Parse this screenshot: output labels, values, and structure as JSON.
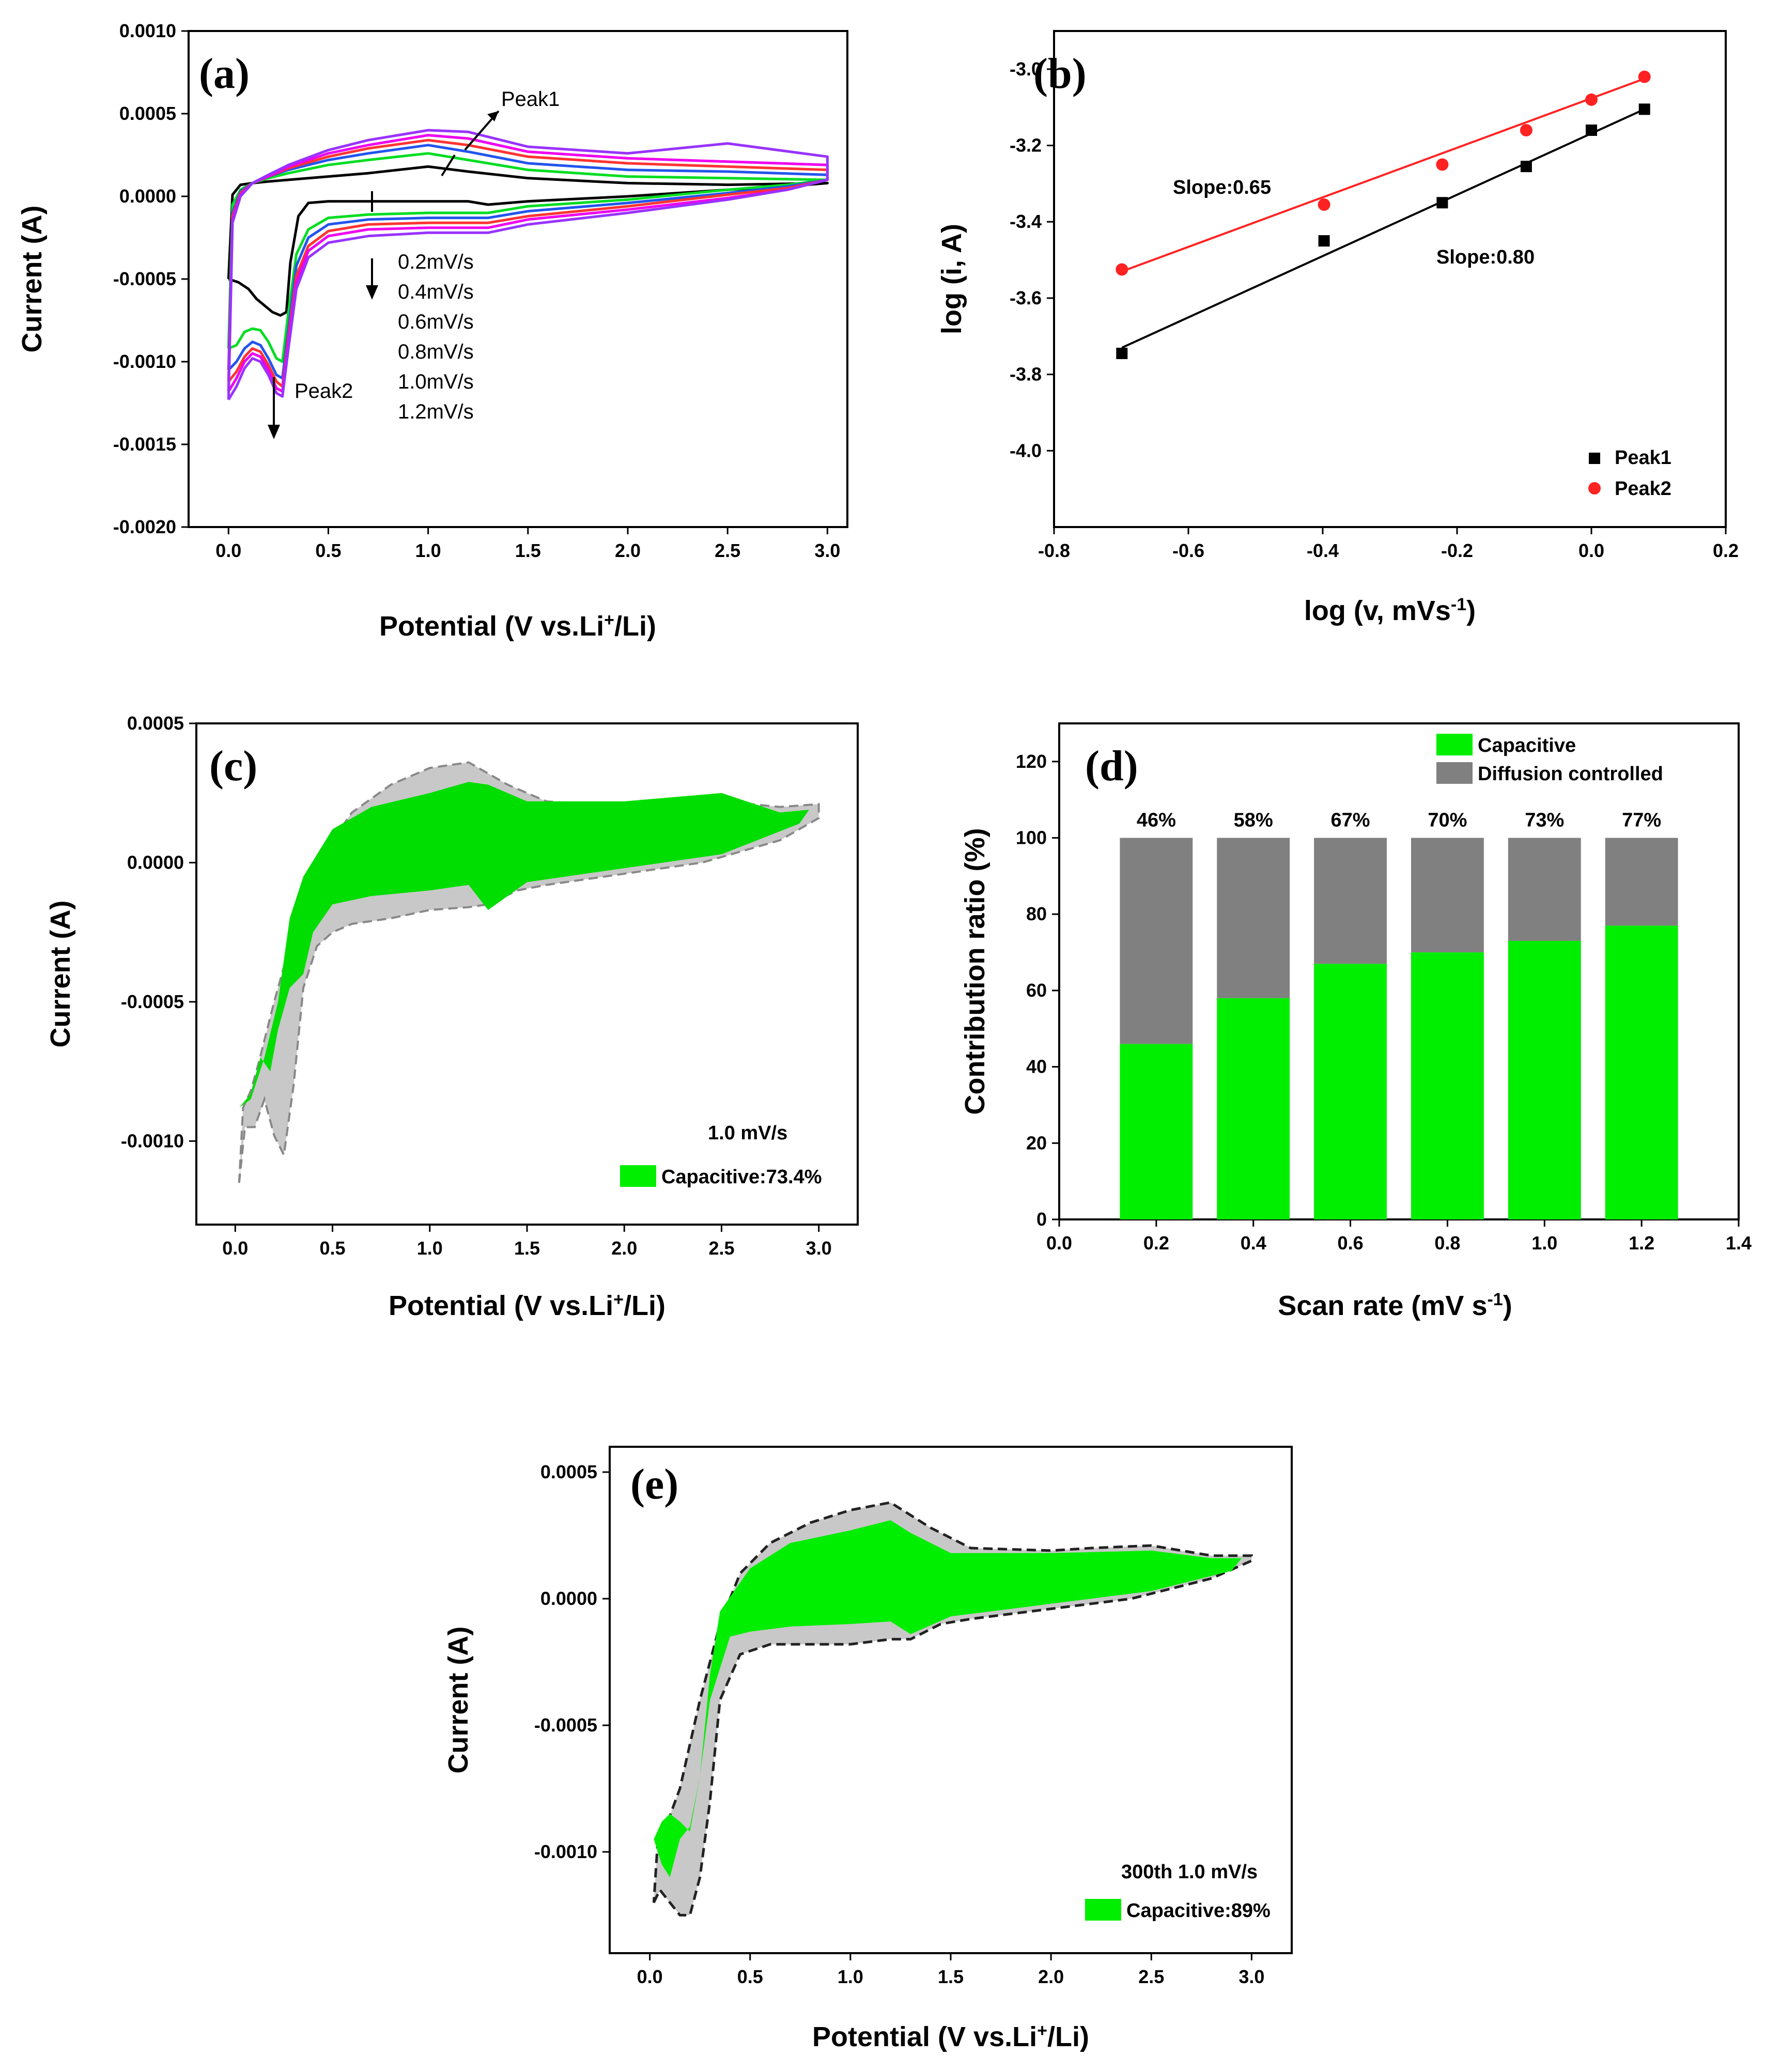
{
  "chart_data": [
    {
      "panel": "(a)",
      "type": "line",
      "xlabel": "Potential (V vs.Li+/Li)",
      "xlabel_parts": [
        "Potential (V vs.Li",
        "+",
        "/Li)"
      ],
      "ylabel": "Current (A)",
      "xlim": [
        -0.2,
        3.1
      ],
      "ylim": [
        -0.002,
        0.001
      ],
      "xticks": [
        "0.0",
        "0.5",
        "1.0",
        "1.5",
        "2.0",
        "2.5",
        "3.0"
      ],
      "yticks": [
        "-0.0020",
        "-0.0015",
        "-0.0010",
        "-0.0005",
        "0.0000",
        "0.0005",
        "0.0010"
      ],
      "grid": false,
      "annotations": [
        "Peak1",
        "Peak2"
      ],
      "legend_text": [
        "0.2mV/s",
        "0.4mV/s",
        "0.6mV/s",
        "0.8mV/s",
        "1.0mV/s",
        "1.2mV/s"
      ],
      "series": [
        {
          "scan_rate": "0.2mV/s",
          "color": "#000000",
          "x": [
            0.0,
            0.05,
            0.1,
            0.14,
            0.18,
            0.22,
            0.26,
            0.29,
            0.31,
            0.35,
            0.4,
            0.5,
            0.7,
            1.0,
            1.2,
            1.3,
            1.5,
            2.0,
            2.5,
            2.8,
            3.0,
            3.0,
            2.5,
            2.0,
            1.5,
            1.2,
            1.0,
            0.7,
            0.5,
            0.3,
            0.2,
            0.12,
            0.06,
            0.02,
            0.0
          ],
          "y": [
            -0.0005,
            -0.00052,
            -0.00056,
            -0.00062,
            -0.00066,
            -0.0007,
            -0.00072,
            -0.0007,
            -0.0004,
            -0.00012,
            -4e-05,
            -3e-05,
            -3e-05,
            -3e-05,
            -3e-05,
            -5e-05,
            -3e-05,
            0.0,
            4e-05,
            6e-05,
            8e-05,
            8e-05,
            7e-05,
            8e-05,
            0.00011,
            0.00015,
            0.00018,
            0.00014,
            0.00012,
            0.0001,
            9e-05,
            8e-05,
            7e-05,
            1e-05,
            -0.0005
          ]
        },
        {
          "scan_rate": "0.4mV/s",
          "color": "#00dd22",
          "x": [
            0.0,
            0.04,
            0.08,
            0.12,
            0.16,
            0.2,
            0.24,
            0.27,
            0.3,
            0.34,
            0.4,
            0.5,
            0.7,
            1.0,
            1.3,
            1.5,
            2.0,
            2.5,
            2.8,
            3.0,
            3.0,
            2.5,
            2.0,
            1.5,
            1.2,
            1.0,
            0.7,
            0.5,
            0.3,
            0.2,
            0.12,
            0.06,
            0.02,
            0.0
          ],
          "y": [
            -0.00092,
            -0.0009,
            -0.00082,
            -0.0008,
            -0.00081,
            -0.00088,
            -0.00098,
            -0.001,
            -0.0007,
            -0.00035,
            -0.0002,
            -0.00013,
            -0.00011,
            -0.0001,
            -0.0001,
            -6e-05,
            -2e-05,
            4e-05,
            7e-05,
            0.0001,
            0.0001,
            0.00011,
            0.00012,
            0.00016,
            0.00022,
            0.00026,
            0.00022,
            0.00019,
            0.00014,
            0.00011,
            8e-05,
            4e-05,
            -5e-05,
            -0.00092
          ]
        },
        {
          "scan_rate": "0.6mV/s",
          "color": "#2255ee",
          "x": [
            0.0,
            0.04,
            0.08,
            0.12,
            0.16,
            0.2,
            0.24,
            0.27,
            0.3,
            0.34,
            0.4,
            0.5,
            0.7,
            1.0,
            1.3,
            1.5,
            2.0,
            2.5,
            2.8,
            3.0,
            3.0,
            2.5,
            2.0,
            1.5,
            1.2,
            1.0,
            0.7,
            0.5,
            0.3,
            0.2,
            0.12,
            0.06,
            0.02,
            0.0
          ],
          "y": [
            -0.00105,
            -0.001,
            -0.00092,
            -0.00088,
            -0.0009,
            -0.00098,
            -0.00108,
            -0.0011,
            -0.0008,
            -0.00042,
            -0.00025,
            -0.00017,
            -0.00014,
            -0.00013,
            -0.00013,
            -9e-05,
            -4e-05,
            2e-05,
            6e-05,
            0.0001,
            0.00013,
            0.00015,
            0.00016,
            0.0002,
            0.00027,
            0.00031,
            0.00026,
            0.00022,
            0.00016,
            0.00012,
            8e-05,
            3e-05,
            -0.0001,
            -0.00105
          ]
        },
        {
          "scan_rate": "0.8mV/s",
          "color": "#ff3333",
          "x": [
            0.0,
            0.04,
            0.08,
            0.12,
            0.16,
            0.2,
            0.24,
            0.27,
            0.3,
            0.34,
            0.4,
            0.5,
            0.7,
            1.0,
            1.3,
            1.5,
            2.0,
            2.5,
            2.8,
            3.0,
            3.0,
            2.5,
            2.0,
            1.5,
            1.2,
            1.0,
            0.7,
            0.5,
            0.3,
            0.2,
            0.12,
            0.06,
            0.02,
            0.0
          ],
          "y": [
            -0.00112,
            -0.00106,
            -0.00097,
            -0.00092,
            -0.00094,
            -0.00102,
            -0.00112,
            -0.00115,
            -0.00085,
            -0.00048,
            -0.0003,
            -0.00021,
            -0.00017,
            -0.00016,
            -0.00016,
            -0.00012,
            -6e-05,
            1e-05,
            5e-05,
            0.0001,
            0.00016,
            0.00018,
            0.0002,
            0.00024,
            0.00031,
            0.00034,
            0.00029,
            0.00024,
            0.00017,
            0.00012,
            8e-05,
            2e-05,
            -0.00012,
            -0.00112
          ]
        },
        {
          "scan_rate": "1.0mV/s",
          "color": "#ee00ee",
          "x": [
            0.0,
            0.04,
            0.08,
            0.12,
            0.16,
            0.2,
            0.24,
            0.27,
            0.3,
            0.34,
            0.4,
            0.5,
            0.7,
            1.0,
            1.3,
            1.5,
            2.0,
            2.5,
            2.8,
            3.0,
            3.0,
            2.5,
            2.0,
            1.5,
            1.2,
            1.0,
            0.7,
            0.5,
            0.3,
            0.2,
            0.12,
            0.06,
            0.02,
            0.0
          ],
          "y": [
            -0.00118,
            -0.0011,
            -0.001,
            -0.00095,
            -0.00097,
            -0.00105,
            -0.00116,
            -0.00118,
            -0.00088,
            -0.00052,
            -0.00033,
            -0.00024,
            -0.0002,
            -0.00019,
            -0.00019,
            -0.00014,
            -8e-05,
            -1e-05,
            4e-05,
            0.0001,
            0.00019,
            0.00021,
            0.00023,
            0.00027,
            0.00035,
            0.00037,
            0.00031,
            0.00026,
            0.00018,
            0.00012,
            8e-05,
            1e-05,
            -0.00014,
            -0.00118
          ]
        },
        {
          "scan_rate": "1.2mV/s",
          "color": "#9933ff",
          "x": [
            0.0,
            0.04,
            0.08,
            0.12,
            0.16,
            0.2,
            0.24,
            0.27,
            0.3,
            0.34,
            0.4,
            0.5,
            0.7,
            1.0,
            1.3,
            1.5,
            2.0,
            2.5,
            2.8,
            3.0,
            3.0,
            2.5,
            2.0,
            1.5,
            1.2,
            1.0,
            0.7,
            0.5,
            0.3,
            0.2,
            0.12,
            0.06,
            0.02,
            0.0
          ],
          "y": [
            -0.00123,
            -0.00115,
            -0.00104,
            -0.00098,
            -0.001,
            -0.00108,
            -0.00119,
            -0.00121,
            -0.00092,
            -0.00056,
            -0.00037,
            -0.00028,
            -0.00024,
            -0.00022,
            -0.00022,
            -0.00017,
            -0.0001,
            -2e-05,
            4e-05,
            0.0001,
            0.00024,
            0.00032,
            0.00026,
            0.0003,
            0.00039,
            0.0004,
            0.00034,
            0.00028,
            0.00019,
            0.00013,
            8e-05,
            0.0,
            -0.00016,
            -0.00123
          ]
        }
      ]
    },
    {
      "panel": "(b)",
      "type": "scatter",
      "xlabel": "log (v, mVs-1)",
      "xlabel_parts": [
        "log (v, mVs",
        "-1",
        ")"
      ],
      "ylabel": "log (i, A)",
      "xlim": [
        -0.8,
        0.2
      ],
      "ylim": [
        -4.2,
        -2.9
      ],
      "xticks": [
        "-0.8",
        "-0.6",
        "-0.4",
        "-0.2",
        "0.0",
        "0.2"
      ],
      "yticks": [
        "-4.0",
        "-3.8",
        "-3.6",
        "-3.4",
        "-3.2",
        "-3.0"
      ],
      "grid": false,
      "legend": "bottom-right",
      "annotations": [
        "Slope:0.65",
        "Slope:0.80"
      ],
      "series": [
        {
          "name": "Peak1",
          "color": "#000000",
          "marker": "square",
          "x": [
            -0.699,
            -0.398,
            -0.222,
            -0.097,
            0.0,
            0.079
          ],
          "y": [
            -3.745,
            -3.45,
            -3.35,
            -3.255,
            -3.16,
            -3.105
          ],
          "fit": [
            [
              -0.699,
              -3.73
            ],
            [
              0.079,
              -3.105
            ]
          ]
        },
        {
          "name": "Peak2",
          "color": "#ff2222",
          "marker": "circle",
          "x": [
            -0.699,
            -0.398,
            -0.222,
            -0.097,
            0.0,
            0.079
          ],
          "y": [
            -3.525,
            -3.355,
            -3.25,
            -3.16,
            -3.08,
            -3.02
          ],
          "fit": [
            [
              -0.699,
              -3.53
            ],
            [
              0.079,
              -3.025
            ]
          ]
        }
      ]
    },
    {
      "panel": "(c)",
      "type": "area",
      "xlabel": "Potential (V vs.Li+/Li)",
      "xlabel_parts": [
        "Potential (V vs.Li",
        "+",
        "/Li)"
      ],
      "ylabel": "Current (A)",
      "xlim": [
        -0.2,
        3.2
      ],
      "ylim": [
        -0.0013,
        0.0005
      ],
      "xticks": [
        "0.0",
        "0.5",
        "1.0",
        "1.5",
        "2.0",
        "2.5",
        "3.0"
      ],
      "yticks": [
        "-0.0010",
        "-0.0005",
        "0.0000",
        "0.0005"
      ],
      "grid": false,
      "annotations": [
        "1.0 mV/s"
      ],
      "legend": {
        "label": "Capacitive:73.4%",
        "color": "#00ee00",
        "position": "bottom-right"
      },
      "total_curve": {
        "color": "#c8c8c8",
        "x": [
          0.02,
          0.05,
          0.1,
          0.15,
          0.2,
          0.25,
          0.3,
          0.35,
          0.42,
          0.5,
          0.6,
          0.8,
          1.0,
          1.2,
          1.3,
          1.45,
          1.6,
          2.0,
          2.4,
          2.8,
          3.0,
          3.0,
          2.8,
          2.5,
          2.3,
          2.0,
          1.6,
          1.4,
          1.2,
          1.0,
          0.8,
          0.6,
          0.45,
          0.35,
          0.3,
          0.2,
          0.12,
          0.08,
          0.04,
          0.02
        ],
        "y": [
          -0.00115,
          -0.00095,
          -0.00095,
          -0.00085,
          -0.00098,
          -0.00105,
          -0.0008,
          -0.00045,
          -0.0003,
          -0.00025,
          -0.00022,
          -0.0002,
          -0.00017,
          -0.00016,
          -0.00015,
          -0.0001,
          -8e-05,
          -4e-05,
          0.0,
          8e-05,
          0.00016,
          0.00021,
          0.0002,
          0.00022,
          0.0002,
          0.0002,
          0.00022,
          0.00028,
          0.00036,
          0.00034,
          0.00028,
          0.00018,
          3e-05,
          -0.0001,
          -0.00025,
          -0.0005,
          -0.00072,
          -0.00082,
          -0.00088,
          -0.00115
        ]
      },
      "capacitive_curve": {
        "color": "#00dd00",
        "x": [
          0.02,
          0.08,
          0.13,
          0.18,
          0.22,
          0.28,
          0.35,
          0.4,
          0.5,
          0.7,
          1.0,
          1.2,
          1.3,
          1.5,
          2.0,
          2.5,
          2.9,
          2.95,
          2.8,
          2.5,
          2.0,
          1.5,
          1.3,
          1.2,
          1.0,
          0.7,
          0.5,
          0.35,
          0.28,
          0.22,
          0.15,
          0.08,
          0.02
        ],
        "y": [
          -0.00088,
          -0.00083,
          -0.0007,
          -0.00075,
          -0.0006,
          -0.00045,
          -0.0004,
          -0.00025,
          -0.00015,
          -0.00012,
          -0.0001,
          -8e-05,
          -0.00017,
          -7e-05,
          -2e-05,
          3e-05,
          0.00014,
          0.00019,
          0.00018,
          0.00025,
          0.00022,
          0.00022,
          0.00028,
          0.00029,
          0.00025,
          0.0002,
          0.00012,
          -5e-05,
          -0.0002,
          -0.0005,
          -0.0007,
          -0.00085,
          -0.00088
        ]
      }
    },
    {
      "panel": "(d)",
      "type": "bar",
      "stacked": true,
      "xlabel": "Scan rate (mV s-1)",
      "xlabel_parts": [
        "Scan rate (mV s",
        "-1",
        ")"
      ],
      "ylabel": "Contribution ratio (%)",
      "xlim": [
        0.0,
        1.4
      ],
      "ylim": [
        0,
        130
      ],
      "xticks": [
        "0.0",
        "0.2",
        "0.4",
        "0.6",
        "0.8",
        "1.0",
        "1.2",
        "1.4"
      ],
      "yticks": [
        "0",
        "20",
        "40",
        "60",
        "80",
        "100",
        "120"
      ],
      "grid": false,
      "legend": "top-right",
      "x": [
        0.2,
        0.4,
        0.6,
        0.8,
        1.0,
        1.2
      ],
      "bar_labels": [
        "46%",
        "58%",
        "67%",
        "70%",
        "73%",
        "77%"
      ],
      "series": [
        {
          "name": "Capacitive",
          "color": "#00ee00",
          "values": [
            46,
            58,
            67,
            70,
            73,
            77
          ]
        },
        {
          "name": "Diffusion controlled",
          "color": "#808080",
          "values": [
            54,
            42,
            33,
            30,
            27,
            23
          ]
        }
      ]
    },
    {
      "panel": "(e)",
      "type": "area",
      "xlabel": "Potential (V vs.Li+/Li)",
      "xlabel_parts": [
        "Potential (V vs.Li",
        "+",
        "/Li)"
      ],
      "ylabel": "Current (A)",
      "xlim": [
        -0.2,
        3.2
      ],
      "ylim": [
        -0.0014,
        0.0006
      ],
      "xticks": [
        "0.0",
        "0.5",
        "1.0",
        "1.5",
        "2.0",
        "2.5",
        "3.0"
      ],
      "yticks": [
        "-0.0010",
        "-0.0005",
        "0.0000",
        "0.0005"
      ],
      "grid": false,
      "annotations": [
        "300th  1.0 mV/s"
      ],
      "legend": {
        "label": "Capacitive:89%",
        "color": "#00ee00",
        "position": "bottom-right"
      },
      "total_curve": {
        "color": "#c8c8c8",
        "x": [
          0.02,
          0.05,
          0.1,
          0.15,
          0.2,
          0.25,
          0.3,
          0.35,
          0.45,
          0.6,
          0.8,
          1.0,
          1.2,
          1.3,
          1.45,
          1.6,
          2.0,
          2.4,
          2.8,
          3.0,
          3.0,
          2.8,
          2.5,
          2.2,
          2.0,
          1.6,
          1.4,
          1.2,
          1.0,
          0.8,
          0.6,
          0.45,
          0.35,
          0.25,
          0.15,
          0.08,
          0.04,
          0.02
        ],
        "y": [
          -0.0012,
          -0.00115,
          -0.0012,
          -0.00125,
          -0.00125,
          -0.0011,
          -0.0008,
          -0.0004,
          -0.00022,
          -0.00018,
          -0.00018,
          -0.00018,
          -0.00016,
          -0.00016,
          -0.0001,
          -8e-05,
          -4e-05,
          0.0,
          8e-05,
          0.00015,
          0.00017,
          0.00017,
          0.00021,
          0.0002,
          0.00019,
          0.0002,
          0.00028,
          0.00038,
          0.00035,
          0.0003,
          0.00022,
          0.0001,
          -0.0001,
          -0.0004,
          -0.00075,
          -0.0009,
          -0.00095,
          -0.0012
        ]
      },
      "capacitive_curve": {
        "color": "#00ee00",
        "x": [
          0.02,
          0.06,
          0.1,
          0.15,
          0.2,
          0.25,
          0.3,
          0.4,
          0.5,
          0.7,
          1.0,
          1.2,
          1.3,
          1.5,
          2.0,
          2.5,
          2.9,
          2.95,
          2.8,
          2.5,
          2.0,
          1.5,
          1.3,
          1.2,
          1.0,
          0.7,
          0.5,
          0.35,
          0.3,
          0.25,
          0.2,
          0.15,
          0.1,
          0.06,
          0.02
        ],
        "y": [
          -0.00095,
          -0.00105,
          -0.0011,
          -0.00095,
          -0.0009,
          -0.0007,
          -0.0004,
          -0.00015,
          -0.00013,
          -0.00011,
          -0.0001,
          -9e-05,
          -0.00014,
          -7e-05,
          -2e-05,
          3e-05,
          0.00011,
          0.00016,
          0.00016,
          0.00019,
          0.00018,
          0.00018,
          0.00026,
          0.00031,
          0.00027,
          0.00022,
          0.00012,
          -5e-05,
          -0.0003,
          -0.0007,
          -0.00092,
          -0.00088,
          -0.00085,
          -0.00088,
          -0.00095
        ]
      }
    }
  ]
}
